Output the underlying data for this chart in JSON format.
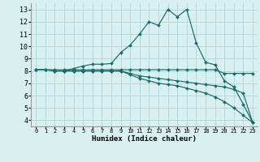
{
  "xlabel": "Humidex (Indice chaleur)",
  "ylabel": "",
  "bg_color": "#d8f0f0",
  "grid_color": "#b8d8d8",
  "line_color": "#1a6b6b",
  "xlim": [
    -0.5,
    23.5
  ],
  "ylim": [
    3.5,
    13.5
  ],
  "xticks": [
    0,
    1,
    2,
    3,
    4,
    5,
    6,
    7,
    8,
    9,
    10,
    11,
    12,
    13,
    14,
    15,
    16,
    17,
    18,
    19,
    20,
    21,
    22,
    23
  ],
  "yticks": [
    4,
    5,
    6,
    7,
    8,
    9,
    10,
    11,
    12,
    13
  ],
  "line1_x": [
    0,
    1,
    2,
    3,
    4,
    5,
    6,
    7,
    8,
    9,
    10,
    11,
    12,
    13,
    14,
    15,
    16,
    17,
    18,
    19,
    20,
    21,
    22,
    23
  ],
  "line1_y": [
    8.1,
    8.1,
    8.0,
    8.0,
    8.2,
    8.4,
    8.55,
    8.55,
    8.6,
    9.5,
    10.1,
    11.0,
    12.0,
    11.7,
    13.0,
    12.4,
    13.0,
    10.3,
    8.7,
    8.5,
    7.2,
    6.7,
    5.3,
    3.8
  ],
  "line2_x": [
    0,
    1,
    2,
    3,
    4,
    5,
    6,
    7,
    8,
    9,
    10,
    11,
    12,
    13,
    14,
    15,
    16,
    17,
    18,
    19,
    20,
    21,
    22,
    23
  ],
  "line2_y": [
    8.1,
    8.1,
    8.1,
    8.1,
    8.1,
    8.1,
    8.1,
    8.1,
    8.1,
    8.1,
    8.1,
    8.1,
    8.1,
    8.1,
    8.1,
    8.1,
    8.1,
    8.1,
    8.1,
    8.1,
    7.8,
    7.8,
    7.8,
    7.8
  ],
  "line3_x": [
    0,
    1,
    2,
    3,
    4,
    5,
    6,
    7,
    8,
    9,
    10,
    11,
    12,
    13,
    14,
    15,
    16,
    17,
    18,
    19,
    20,
    21,
    22,
    23
  ],
  "line3_y": [
    8.1,
    8.1,
    8.0,
    8.0,
    8.0,
    8.0,
    8.0,
    8.0,
    8.0,
    8.0,
    7.8,
    7.6,
    7.5,
    7.4,
    7.3,
    7.2,
    7.1,
    7.0,
    6.9,
    6.8,
    6.7,
    6.5,
    6.2,
    3.8
  ],
  "line4_x": [
    3,
    4,
    5,
    6,
    7,
    8,
    9,
    10,
    11,
    12,
    13,
    14,
    15,
    16,
    17,
    18,
    19,
    20,
    21,
    22,
    23
  ],
  "line4_y": [
    8.0,
    8.0,
    8.0,
    8.0,
    8.0,
    8.0,
    8.0,
    7.7,
    7.4,
    7.2,
    7.0,
    6.9,
    6.8,
    6.6,
    6.4,
    6.2,
    5.9,
    5.5,
    5.0,
    4.4,
    3.8
  ]
}
